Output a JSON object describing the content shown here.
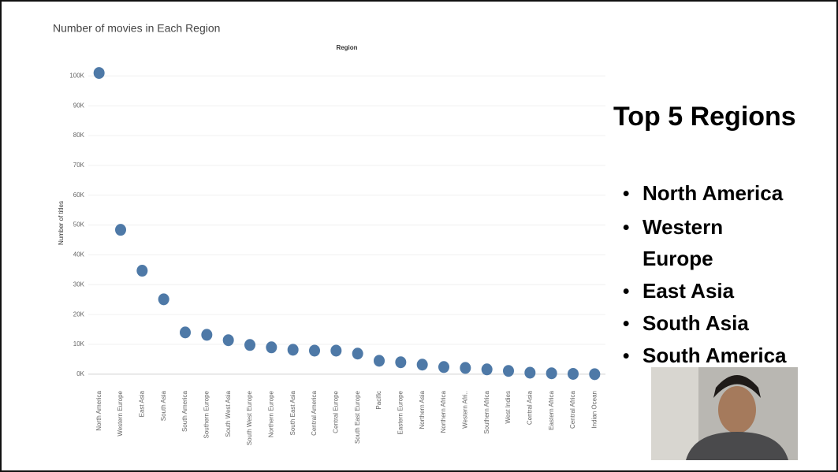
{
  "chart_data": {
    "type": "dot",
    "title": "Number of movies in Each Region",
    "x_label": "Region",
    "y_label": "Number of titles",
    "categories": [
      "North America",
      "Western Europe",
      "East Asia",
      "South Asia",
      "South America",
      "Southern Europe",
      "South West Asia",
      "South West Europe",
      "Northern Europe",
      "South East Asia",
      "Central America",
      "Central Europe",
      "South East Europe",
      "Pacific",
      "Eastern Europe",
      "Northern Asia",
      "Northern Africa",
      "Western Afri..",
      "Southern Africa",
      "West Indies",
      "Central Asia",
      "Eastern Africa",
      "Central Africa",
      "Indian Ocean"
    ],
    "values": [
      101000,
      48400,
      34700,
      25100,
      14000,
      13200,
      11400,
      9800,
      9000,
      8200,
      7900,
      7900,
      6900,
      4500,
      4000,
      3200,
      2400,
      2100,
      1600,
      1100,
      500,
      300,
      100,
      0
    ],
    "color": "#4e79a7",
    "ylim": [
      -4000,
      103000
    ],
    "yticks": [
      {
        "value": 0,
        "label": "0K"
      },
      {
        "value": 10000,
        "label": "10K"
      },
      {
        "value": 20000,
        "label": "20K"
      },
      {
        "value": 30000,
        "label": "30K"
      },
      {
        "value": 40000,
        "label": "40K"
      },
      {
        "value": 50000,
        "label": "50K"
      },
      {
        "value": 60000,
        "label": "60K"
      },
      {
        "value": 70000,
        "label": "70K"
      },
      {
        "value": 80000,
        "label": "80K"
      },
      {
        "value": 90000,
        "label": "90K"
      },
      {
        "value": 100000,
        "label": "100K"
      }
    ],
    "grid": true
  },
  "sidebar": {
    "heading": "Top 5 Regions",
    "items": [
      "North America",
      "Western",
      "Europe",
      "East Asia",
      "South Asia",
      "South America"
    ]
  }
}
